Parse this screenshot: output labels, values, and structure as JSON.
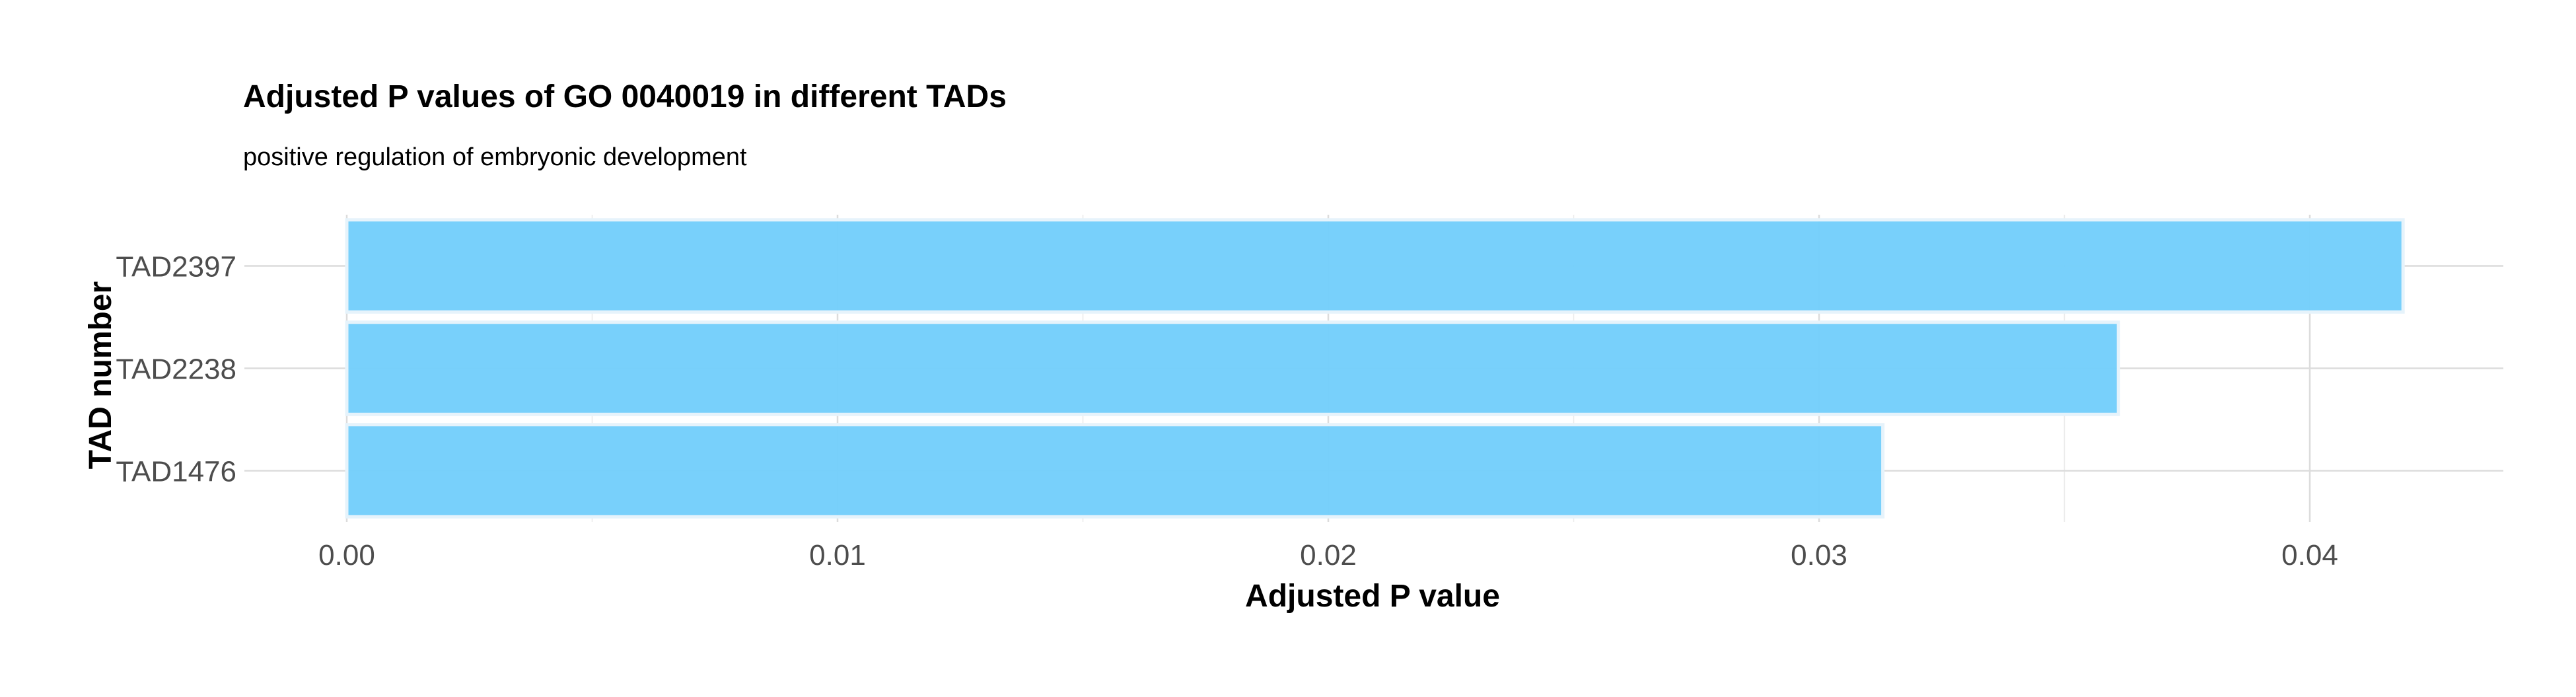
{
  "chart_data": {
    "type": "bar",
    "orientation": "horizontal",
    "title": "Adjusted P values of GO 0040019 in different TADs",
    "subtitle": "positive regulation of embryonic development",
    "xlabel": "Adjusted P value",
    "ylabel": "TAD number",
    "categories": [
      "TAD2397",
      "TAD2238",
      "TAD1476"
    ],
    "values": [
      0.0419,
      0.0361,
      0.0313
    ],
    "xlim": [
      0,
      0.044
    ],
    "xticks": [
      0.0,
      0.01,
      0.02,
      0.03,
      0.04
    ],
    "xtick_labels": [
      "0.00",
      "0.01",
      "0.02",
      "0.03",
      "0.04"
    ],
    "grid": true,
    "legend": "none",
    "bar_color": "#74cefb",
    "bar_edge_color": "#e6f3fb"
  }
}
